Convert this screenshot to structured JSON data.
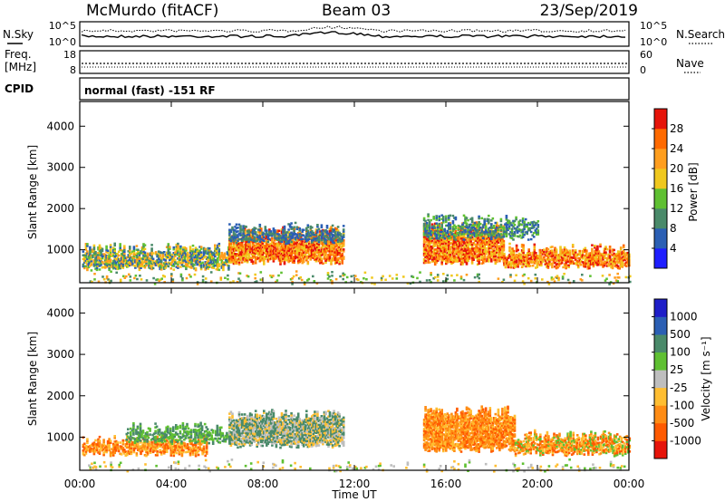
{
  "header": {
    "station": "McMurdo (fitACF)",
    "beam": "Beam 03",
    "date": "23/Sep/2019"
  },
  "noise_panel": {
    "left_label": "N.Sky",
    "right_label": "N.Search",
    "left_ticks": [
      "10^5",
      "10^0"
    ],
    "right_ticks": [
      "10^5",
      "10^0"
    ]
  },
  "freq_panel": {
    "left_label_1": "Freq.",
    "left_label_2": "[MHz]",
    "right_label": "Nave",
    "left_ticks": [
      "18",
      "8"
    ],
    "right_ticks": [
      "60",
      "0"
    ]
  },
  "cpid": {
    "label": "CPID",
    "value": "normal (fast) -151 RF"
  },
  "chart_data": [
    {
      "type": "heatmap",
      "xlabel": "",
      "ylabel": "Slant Range [km]",
      "ylim": [
        200,
        4600
      ],
      "x_ticks": [
        "00:00",
        "04:00",
        "08:00",
        "12:00",
        "16:00",
        "20:00",
        "00:00"
      ],
      "y_ticks": [
        1000,
        2000,
        3000,
        4000
      ],
      "colorbar_label": "Power [dB]",
      "colorbar_ticks": [
        "4",
        "8",
        "12",
        "16",
        "20",
        "24",
        "28"
      ],
      "colors": [
        "#1e1eff",
        "#2b5fb4",
        "#4a8a6a",
        "#5fc032",
        "#f0c81e",
        "#ff9e1e",
        "#ff6a00",
        "#e6140a"
      ]
    },
    {
      "type": "heatmap",
      "xlabel": "Time UT",
      "ylabel": "Slant Range [km]",
      "ylim": [
        200,
        4600
      ],
      "x_ticks": [
        "00:00",
        "04:00",
        "08:00",
        "12:00",
        "16:00",
        "20:00",
        "00:00"
      ],
      "y_ticks": [
        1000,
        2000,
        3000,
        4000
      ],
      "colorbar_label": "Velocity [m s⁻¹]",
      "colorbar_ticks": [
        "1000",
        "500",
        "100",
        "25",
        "-25",
        "-100",
        "-500",
        "-1000"
      ],
      "colors": [
        "#1e1ec8",
        "#2b5fb4",
        "#4a8a6a",
        "#5fc032",
        "#bebebe",
        "#ffbe32",
        "#ff8c14",
        "#ff5a00",
        "#e6140a"
      ]
    }
  ]
}
